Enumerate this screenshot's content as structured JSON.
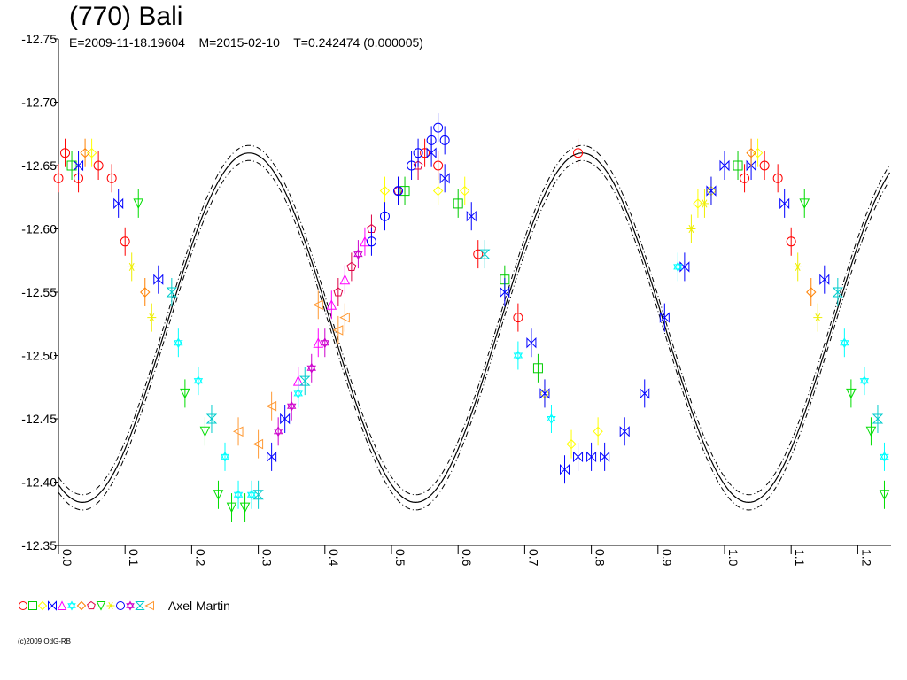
{
  "chart_data": {
    "type": "scatter",
    "title": "(770) Bali",
    "subtitle": "E=2009-11-18.19604    M=2015-02-10    T=0.242474 (0.000005)",
    "xlabel": "",
    "ylabel": "",
    "xlim": [
      0.0,
      1.25
    ],
    "ylim": [
      -12.35,
      -12.75
    ],
    "y_inverted": true,
    "x_ticks": [
      "0.0",
      "0.1",
      "0.2",
      "0.3",
      "0.4",
      "0.5",
      "0.6",
      "0.7",
      "0.8",
      "0.9",
      "1.0",
      "1.1",
      "1.2"
    ],
    "x_tick_values": [
      0.0,
      0.1,
      0.2,
      0.3,
      0.4,
      0.5,
      0.6,
      0.7,
      0.8,
      0.9,
      1.0,
      1.1,
      1.2
    ],
    "y_ticks": [
      "-12.75",
      "-12.70",
      "-12.65",
      "-12.60",
      "-12.55",
      "-12.50",
      "-12.45",
      "-12.40",
      "-12.35"
    ],
    "y_tick_values": [
      -12.75,
      -12.7,
      -12.65,
      -12.6,
      -12.55,
      -12.5,
      -12.45,
      -12.4,
      -12.35
    ],
    "grid": false,
    "legend_position": "bottom-left",
    "legend_label": "Axel Martin",
    "fit_curve": {
      "name": "",
      "mean": -12.522,
      "harmonics": [
        {
          "order": 2,
          "amplitude": 0.138,
          "phase_deg": 64.0
        }
      ]
    },
    "series": [
      {
        "symbol": "circle",
        "color": "#ff0000",
        "points": [
          [
            0.0,
            -12.64
          ],
          [
            0.01,
            -12.66
          ],
          [
            0.03,
            -12.64
          ],
          [
            0.06,
            -12.65
          ],
          [
            0.08,
            -12.64
          ],
          [
            0.1,
            -12.59
          ],
          [
            0.55,
            -12.66
          ],
          [
            0.57,
            -12.65
          ],
          [
            0.63,
            -12.58
          ],
          [
            0.69,
            -12.53
          ],
          [
            0.78,
            -12.66
          ],
          [
            1.03,
            -12.64
          ],
          [
            1.06,
            -12.65
          ],
          [
            1.08,
            -12.64
          ],
          [
            1.1,
            -12.59
          ]
        ]
      },
      {
        "symbol": "square",
        "color": "#00cc00",
        "points": [
          [
            0.02,
            -12.65
          ],
          [
            0.52,
            -12.63
          ],
          [
            0.6,
            -12.62
          ],
          [
            0.67,
            -12.56
          ],
          [
            0.72,
            -12.49
          ],
          [
            1.02,
            -12.65
          ]
        ]
      },
      {
        "symbol": "diamond",
        "color": "#ffff00",
        "points": [
          [
            0.05,
            -12.66
          ],
          [
            0.49,
            -12.63
          ],
          [
            0.57,
            -12.63
          ],
          [
            0.61,
            -12.63
          ],
          [
            0.73,
            -12.47
          ],
          [
            0.77,
            -12.43
          ],
          [
            0.81,
            -12.44
          ],
          [
            0.96,
            -12.62
          ],
          [
            0.98,
            -12.63
          ],
          [
            1.05,
            -12.66
          ]
        ]
      },
      {
        "symbol": "bowtie",
        "color": "#0000ff",
        "points": [
          [
            0.03,
            -12.65
          ],
          [
            0.09,
            -12.62
          ],
          [
            0.15,
            -12.56
          ],
          [
            0.32,
            -12.42
          ],
          [
            0.34,
            -12.45
          ],
          [
            0.56,
            -12.66
          ],
          [
            0.58,
            -12.64
          ],
          [
            0.62,
            -12.61
          ],
          [
            0.67,
            -12.55
          ],
          [
            0.71,
            -12.51
          ],
          [
            0.73,
            -12.47
          ],
          [
            0.76,
            -12.41
          ],
          [
            0.78,
            -12.42
          ],
          [
            0.8,
            -12.42
          ],
          [
            0.82,
            -12.42
          ],
          [
            0.85,
            -12.44
          ],
          [
            0.88,
            -12.47
          ],
          [
            0.91,
            -12.53
          ],
          [
            0.94,
            -12.57
          ],
          [
            0.98,
            -12.63
          ],
          [
            1.0,
            -12.65
          ],
          [
            1.04,
            -12.65
          ],
          [
            1.09,
            -12.62
          ],
          [
            1.15,
            -12.56
          ]
        ]
      },
      {
        "symbol": "triangle-up",
        "color": "#ff00ff",
        "points": [
          [
            0.36,
            -12.48
          ],
          [
            0.39,
            -12.51
          ],
          [
            0.41,
            -12.54
          ],
          [
            0.43,
            -12.56
          ],
          [
            0.46,
            -12.59
          ]
        ]
      },
      {
        "symbol": "star",
        "color": "#00ffff",
        "points": [
          [
            0.18,
            -12.51
          ],
          [
            0.21,
            -12.48
          ],
          [
            0.25,
            -12.42
          ],
          [
            0.27,
            -12.39
          ],
          [
            0.29,
            -12.39
          ],
          [
            0.36,
            -12.47
          ],
          [
            0.69,
            -12.5
          ],
          [
            0.74,
            -12.45
          ],
          [
            0.93,
            -12.57
          ],
          [
            1.18,
            -12.51
          ],
          [
            1.21,
            -12.48
          ],
          [
            1.24,
            -12.42
          ]
        ]
      },
      {
        "symbol": "diamond",
        "color": "#ff8000",
        "points": [
          [
            0.04,
            -12.66
          ],
          [
            0.13,
            -12.55
          ],
          [
            1.04,
            -12.66
          ],
          [
            1.13,
            -12.55
          ]
        ]
      },
      {
        "symbol": "pentagon",
        "color": "#dd0044",
        "points": [
          [
            0.42,
            -12.55
          ],
          [
            0.44,
            -12.57
          ],
          [
            0.47,
            -12.6
          ],
          [
            0.51,
            -12.63
          ],
          [
            0.54,
            -12.65
          ]
        ]
      },
      {
        "symbol": "triangle-down",
        "color": "#00dd00",
        "points": [
          [
            0.12,
            -12.62
          ],
          [
            0.19,
            -12.47
          ],
          [
            0.22,
            -12.44
          ],
          [
            0.24,
            -12.39
          ],
          [
            0.26,
            -12.38
          ],
          [
            0.28,
            -12.38
          ],
          [
            1.12,
            -12.62
          ],
          [
            1.19,
            -12.47
          ],
          [
            1.22,
            -12.44
          ],
          [
            1.24,
            -12.39
          ]
        ]
      },
      {
        "symbol": "asterisk",
        "color": "#eeee00",
        "points": [
          [
            0.11,
            -12.57
          ],
          [
            0.14,
            -12.53
          ],
          [
            0.95,
            -12.6
          ],
          [
            0.97,
            -12.62
          ],
          [
            1.11,
            -12.57
          ],
          [
            1.14,
            -12.53
          ]
        ]
      },
      {
        "symbol": "circle",
        "color": "#0000ff",
        "points": [
          [
            0.47,
            -12.59
          ],
          [
            0.49,
            -12.61
          ],
          [
            0.51,
            -12.63
          ],
          [
            0.53,
            -12.65
          ],
          [
            0.54,
            -12.66
          ],
          [
            0.56,
            -12.67
          ],
          [
            0.57,
            -12.68
          ],
          [
            0.58,
            -12.67
          ]
        ]
      },
      {
        "symbol": "star",
        "color": "#cc00cc",
        "points": [
          [
            0.33,
            -12.44
          ],
          [
            0.35,
            -12.46
          ],
          [
            0.38,
            -12.49
          ],
          [
            0.4,
            -12.51
          ],
          [
            0.45,
            -12.58
          ]
        ]
      },
      {
        "symbol": "hourglass",
        "color": "#00cccc",
        "points": [
          [
            0.17,
            -12.55
          ],
          [
            0.23,
            -12.45
          ],
          [
            0.3,
            -12.39
          ],
          [
            0.37,
            -12.48
          ],
          [
            0.64,
            -12.58
          ],
          [
            1.17,
            -12.55
          ],
          [
            1.23,
            -12.45
          ]
        ]
      },
      {
        "symbol": "triangle-left",
        "color": "#ff9933",
        "points": [
          [
            0.27,
            -12.44
          ],
          [
            0.3,
            -12.43
          ],
          [
            0.32,
            -12.46
          ],
          [
            0.39,
            -12.54
          ],
          [
            0.42,
            -12.52
          ],
          [
            0.43,
            -12.53
          ]
        ]
      }
    ]
  },
  "legend": {
    "symbols": [
      {
        "symbol": "circle",
        "color": "#ff0000"
      },
      {
        "symbol": "square",
        "color": "#00cc00"
      },
      {
        "symbol": "diamond",
        "color": "#ffff00"
      },
      {
        "symbol": "bowtie",
        "color": "#0000ff"
      },
      {
        "symbol": "triangle-up",
        "color": "#ff00ff"
      },
      {
        "symbol": "star",
        "color": "#00ffff"
      },
      {
        "symbol": "diamond",
        "color": "#ff8000"
      },
      {
        "symbol": "pentagon",
        "color": "#dd0044"
      },
      {
        "symbol": "triangle-down",
        "color": "#00dd00"
      },
      {
        "symbol": "asterisk",
        "color": "#eeee00"
      },
      {
        "symbol": "circle",
        "color": "#0000ff"
      },
      {
        "symbol": "star",
        "color": "#cc00cc"
      },
      {
        "symbol": "hourglass",
        "color": "#00cccc"
      },
      {
        "symbol": "triangle-left",
        "color": "#ff9933"
      }
    ]
  },
  "footer": {
    "copyright": "(c)2009 OdG-RB"
  }
}
